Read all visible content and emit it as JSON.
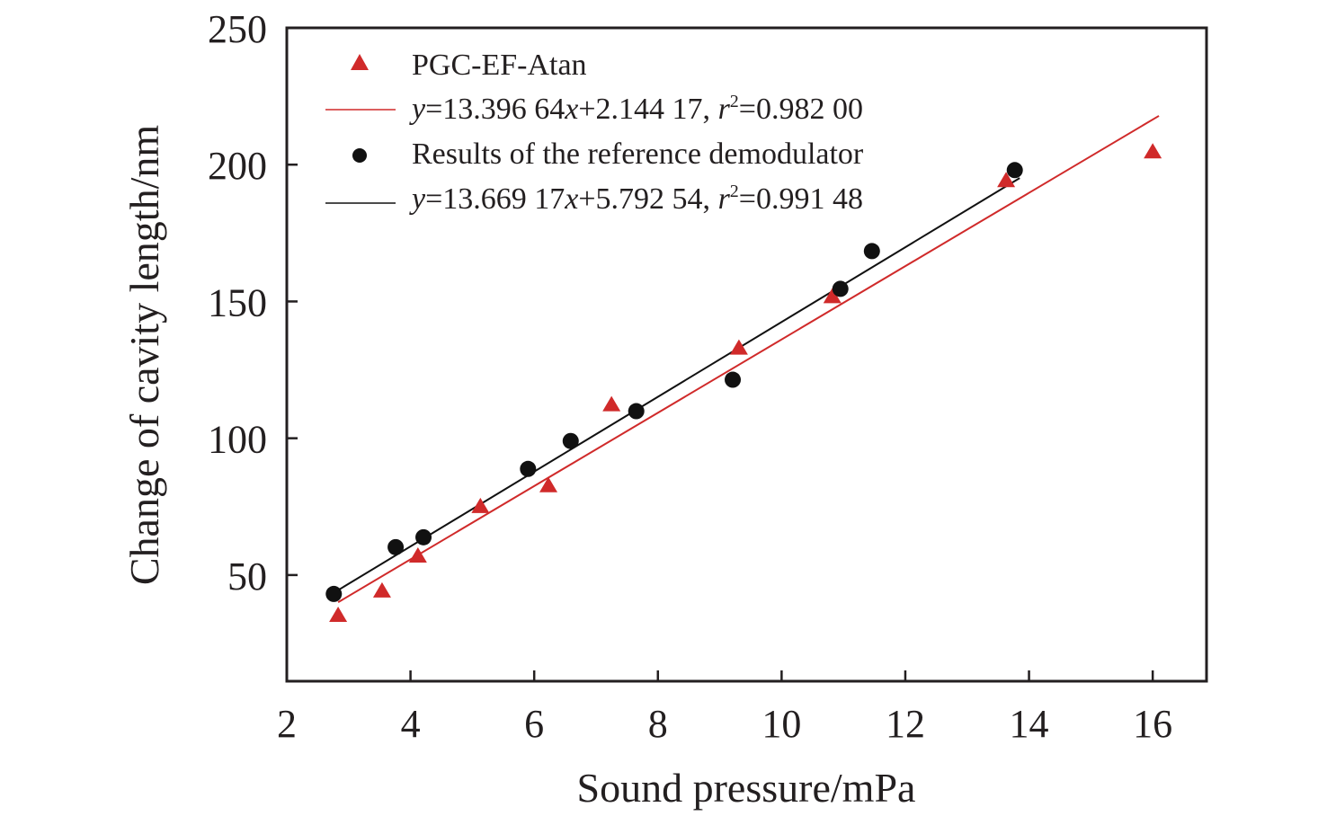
{
  "chart_data": {
    "type": "scatter",
    "title": "",
    "xlabel": "Sound pressure/mPa",
    "ylabel": "Change of cavity length/nm",
    "xlim": [
      2,
      16.87
    ],
    "ylim": [
      11.2,
      250
    ],
    "xticks": [
      2,
      4,
      6,
      8,
      10,
      12,
      14,
      16
    ],
    "xtick_labels": [
      "2",
      "4",
      "6",
      "8",
      "10",
      "12",
      "14",
      "16"
    ],
    "yticks": [
      50,
      100,
      150,
      200,
      250
    ],
    "ytick_labels": [
      "50",
      "100",
      "150",
      "200",
      "250"
    ],
    "grid": false,
    "legend_position": "top-left",
    "series": [
      {
        "name": "PGC-EF-Atan",
        "marker": "triangle",
        "color": "#d02a2a",
        "x": [
          2.83,
          3.54,
          4.12,
          5.13,
          6.23,
          7.25,
          9.31,
          10.82,
          13.63,
          16.0
        ],
        "y": [
          35.5,
          44.4,
          57.2,
          75.3,
          82.9,
          112.5,
          133.2,
          152.0,
          194.4,
          204.9
        ]
      },
      {
        "name": "Results of the reference demodulator",
        "marker": "circle",
        "color": "#111111",
        "x": [
          2.76,
          3.76,
          4.21,
          5.9,
          6.59,
          7.65,
          9.21,
          10.95,
          11.46,
          13.77
        ],
        "y": [
          43.1,
          60.2,
          63.8,
          88.8,
          99.0,
          109.9,
          121.4,
          154.6,
          168.4,
          198.0
        ]
      }
    ],
    "fits": [
      {
        "name": "PGC-EF-Atan fit",
        "color": "#d02a2a",
        "slope": 13.39664,
        "intercept": 2.14417,
        "x_range": [
          2.83,
          16.1
        ],
        "label_parts": [
          "y",
          "=13.396 64",
          "x",
          "+2.144 17,  ",
          "r",
          "2",
          "=0.982 00"
        ]
      },
      {
        "name": "Reference demodulator fit",
        "color": "#111111",
        "slope": 13.66917,
        "intercept": 5.79254,
        "x_range": [
          2.76,
          13.85
        ],
        "label_parts": [
          "y",
          "=13.669 17",
          "x",
          "+5.792 54, ",
          "r",
          "2",
          "=0.991 48"
        ]
      }
    ],
    "legend": [
      {
        "label": "PGC-EF-Atan",
        "kind": "triangle",
        "color": "#d02a2a"
      },
      {
        "label": "y=13.396 64x+2.144 17,  r²=0.982 00",
        "kind": "line",
        "color": "#d02a2a"
      },
      {
        "label": "Results of the reference demodulator",
        "kind": "circle",
        "color": "#111111"
      },
      {
        "label": "y=13.669 17x+5.792 54, r²=0.991 48",
        "kind": "line",
        "color": "#111111"
      }
    ]
  }
}
